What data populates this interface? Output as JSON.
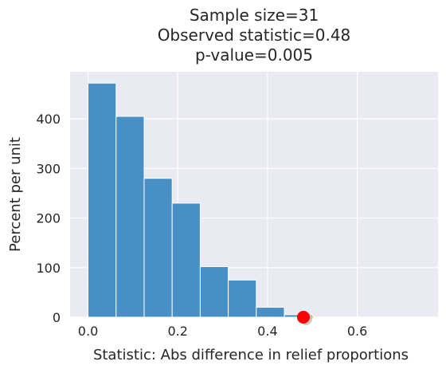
{
  "chart_data": {
    "type": "bar",
    "title_lines": [
      "Sample size=31",
      "Observed statistic=0.48",
      "p-value=0.005"
    ],
    "xlabel": "Statistic: Abs difference in relief proportions",
    "ylabel": "Percent per unit",
    "xlim": [
      -0.04,
      0.78
    ],
    "ylim": [
      0,
      495
    ],
    "xticks": [
      0.0,
      0.2,
      0.4,
      0.6
    ],
    "xtick_labels": [
      "0.0",
      "0.2",
      "0.4",
      "0.6"
    ],
    "yticks": [
      0,
      100,
      200,
      300,
      400
    ],
    "ytick_labels": [
      "0",
      "100",
      "200",
      "300",
      "400"
    ],
    "bin_width": 0.0625,
    "bins": [
      {
        "start": 0.0,
        "value": 472
      },
      {
        "start": 0.0625,
        "value": 405
      },
      {
        "start": 0.125,
        "value": 280
      },
      {
        "start": 0.1875,
        "value": 230
      },
      {
        "start": 0.25,
        "value": 102
      },
      {
        "start": 0.3125,
        "value": 75
      },
      {
        "start": 0.375,
        "value": 20
      },
      {
        "start": 0.4375,
        "value": 5
      },
      {
        "start": 0.5,
        "value": 0
      },
      {
        "start": 0.5625,
        "value": 0
      },
      {
        "start": 0.625,
        "value": 0
      },
      {
        "start": 0.6875,
        "value": 0
      }
    ],
    "observed_statistic": 0.48,
    "grid": true,
    "colors": {
      "bar": "#3a87c2",
      "background": "#eaeaf2",
      "grid": "#ffffff",
      "marker": "#ff0000",
      "marker_line": "#f5c518"
    }
  }
}
